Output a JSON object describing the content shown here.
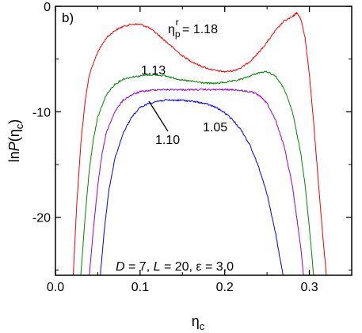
{
  "chart_data": {
    "type": "line",
    "panel_label": "b)",
    "xlabel": {
      "base": "η",
      "sub": "c"
    },
    "ylabel": {
      "prefix": "ln",
      "italic": "P",
      "open": "(η",
      "sub": "c",
      "close": ")"
    },
    "xlim": [
      0.0,
      0.35
    ],
    "ylim": [
      -25.5,
      0.0
    ],
    "xticks": [
      "0.0",
      "0.1",
      "0.2",
      "0.3"
    ],
    "xtick_values": [
      0.0,
      0.1,
      0.2,
      0.3
    ],
    "yticks": [
      "0",
      "-10",
      "-20"
    ],
    "ytick_values": [
      0,
      -10,
      -20
    ],
    "annotation": {
      "D_sym": "D",
      "D_val": " = 7, ",
      "L_sym": "L",
      "L_val": " = 20, ",
      "eps_sym": "ε",
      "eps_val": " = 3.0"
    },
    "series": [
      {
        "name": "1.18",
        "label_prefix": "η",
        "label_sub": "p",
        "label_sup": "r",
        "label_eq": " = 1.18",
        "color": "#ff0000",
        "points": [
          [
            0.021,
            -25.5
          ],
          [
            0.025,
            -19
          ],
          [
            0.03,
            -13
          ],
          [
            0.035,
            -9
          ],
          [
            0.04,
            -6.5
          ],
          [
            0.05,
            -4.3
          ],
          [
            0.06,
            -3.0
          ],
          [
            0.07,
            -2.3
          ],
          [
            0.08,
            -1.9
          ],
          [
            0.09,
            -1.7
          ],
          [
            0.1,
            -1.7
          ],
          [
            0.11,
            -2.0
          ],
          [
            0.12,
            -2.6
          ],
          [
            0.13,
            -3.3
          ],
          [
            0.14,
            -4.0
          ],
          [
            0.15,
            -4.7
          ],
          [
            0.16,
            -5.2
          ],
          [
            0.17,
            -5.6
          ],
          [
            0.18,
            -5.9
          ],
          [
            0.19,
            -6.1
          ],
          [
            0.2,
            -6.2
          ],
          [
            0.21,
            -6.1
          ],
          [
            0.22,
            -5.8
          ],
          [
            0.23,
            -5.2
          ],
          [
            0.24,
            -4.4
          ],
          [
            0.25,
            -3.4
          ],
          [
            0.26,
            -2.3
          ],
          [
            0.27,
            -1.4
          ],
          [
            0.28,
            -1.0
          ],
          [
            0.285,
            -0.6
          ],
          [
            0.29,
            -1.2
          ],
          [
            0.295,
            -3.0
          ],
          [
            0.3,
            -6.5
          ],
          [
            0.305,
            -11
          ],
          [
            0.31,
            -16
          ],
          [
            0.315,
            -21
          ],
          [
            0.32,
            -25.5
          ]
        ]
      },
      {
        "name": "1.13",
        "label": "1.13",
        "color": "#008800",
        "points": [
          [
            0.03,
            -25.5
          ],
          [
            0.035,
            -20
          ],
          [
            0.04,
            -15.5
          ],
          [
            0.045,
            -12.5
          ],
          [
            0.05,
            -10.5
          ],
          [
            0.06,
            -8.4
          ],
          [
            0.07,
            -7.4
          ],
          [
            0.08,
            -6.9
          ],
          [
            0.09,
            -6.7
          ],
          [
            0.1,
            -6.6
          ],
          [
            0.11,
            -6.5
          ],
          [
            0.12,
            -6.5
          ],
          [
            0.13,
            -6.6
          ],
          [
            0.14,
            -6.8
          ],
          [
            0.15,
            -7.0
          ],
          [
            0.16,
            -7.1
          ],
          [
            0.17,
            -7.2
          ],
          [
            0.18,
            -7.3
          ],
          [
            0.19,
            -7.3
          ],
          [
            0.2,
            -7.2
          ],
          [
            0.21,
            -7.1
          ],
          [
            0.22,
            -6.9
          ],
          [
            0.23,
            -6.6
          ],
          [
            0.24,
            -6.3
          ],
          [
            0.25,
            -6.2
          ],
          [
            0.26,
            -6.6
          ],
          [
            0.27,
            -7.8
          ],
          [
            0.28,
            -10
          ],
          [
            0.29,
            -14
          ],
          [
            0.295,
            -17
          ],
          [
            0.3,
            -21
          ],
          [
            0.305,
            -25.5
          ]
        ]
      },
      {
        "name": "1.10",
        "label": "1.10",
        "color": "#9900cc",
        "points": [
          [
            0.04,
            -25.5
          ],
          [
            0.045,
            -21
          ],
          [
            0.05,
            -17
          ],
          [
            0.055,
            -14
          ],
          [
            0.06,
            -12
          ],
          [
            0.07,
            -10
          ],
          [
            0.08,
            -8.9
          ],
          [
            0.09,
            -8.4
          ],
          [
            0.1,
            -8.1
          ],
          [
            0.11,
            -8.0
          ],
          [
            0.12,
            -7.9
          ],
          [
            0.13,
            -7.9
          ],
          [
            0.14,
            -7.9
          ],
          [
            0.15,
            -7.9
          ],
          [
            0.16,
            -7.9
          ],
          [
            0.17,
            -7.9
          ],
          [
            0.18,
            -7.9
          ],
          [
            0.19,
            -7.9
          ],
          [
            0.2,
            -7.9
          ],
          [
            0.21,
            -7.9
          ],
          [
            0.22,
            -8.0
          ],
          [
            0.23,
            -8.1
          ],
          [
            0.24,
            -8.4
          ],
          [
            0.25,
            -9.2
          ],
          [
            0.26,
            -10.8
          ],
          [
            0.27,
            -13.2
          ],
          [
            0.28,
            -17
          ],
          [
            0.285,
            -20
          ],
          [
            0.29,
            -23
          ],
          [
            0.293,
            -25.5
          ]
        ]
      },
      {
        "name": "1.05",
        "label": "1.05",
        "color": "#0000ff",
        "points": [
          [
            0.053,
            -25.5
          ],
          [
            0.058,
            -21
          ],
          [
            0.063,
            -17.5
          ],
          [
            0.07,
            -14.5
          ],
          [
            0.08,
            -12
          ],
          [
            0.09,
            -10.5
          ],
          [
            0.1,
            -9.6
          ],
          [
            0.11,
            -9.2
          ],
          [
            0.12,
            -9.0
          ],
          [
            0.13,
            -8.9
          ],
          [
            0.14,
            -8.9
          ],
          [
            0.15,
            -8.9
          ],
          [
            0.16,
            -9.0
          ],
          [
            0.17,
            -9.1
          ],
          [
            0.18,
            -9.3
          ],
          [
            0.19,
            -9.6
          ],
          [
            0.2,
            -10.1
          ],
          [
            0.21,
            -10.8
          ],
          [
            0.22,
            -11.8
          ],
          [
            0.23,
            -13.2
          ],
          [
            0.24,
            -15.2
          ],
          [
            0.25,
            -17.8
          ],
          [
            0.26,
            -21.5
          ],
          [
            0.265,
            -23.8
          ],
          [
            0.269,
            -25.5
          ]
        ]
      }
    ]
  }
}
